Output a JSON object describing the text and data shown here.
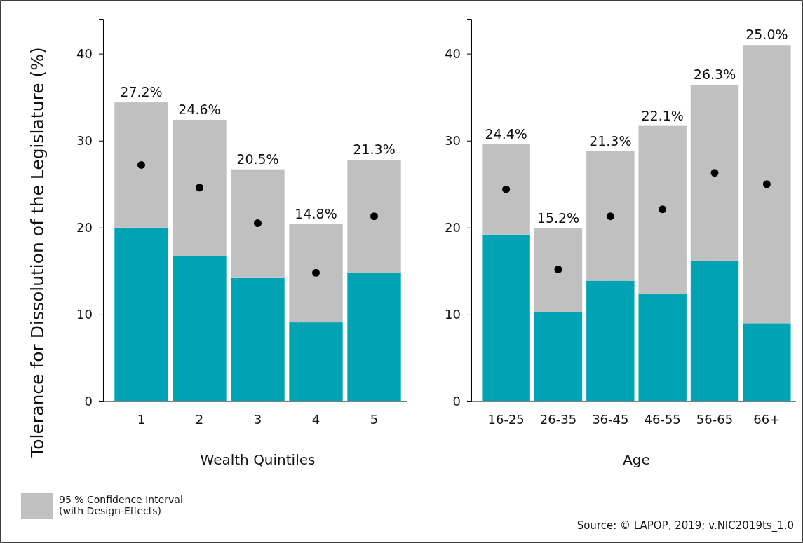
{
  "chart_data": [
    {
      "type": "bar",
      "stacked": true,
      "categories": [
        "1",
        "2",
        "3",
        "4",
        "5"
      ],
      "xlabel": "Wealth Quintiles",
      "ylabel": "Tolerance for Dissolution of the Legislature (%)",
      "ylim": [
        0,
        44
      ],
      "yticks": [
        0,
        10,
        20,
        30,
        40
      ],
      "legend": "bottom left",
      "annotations": [
        {
          "text": "27.2%",
          "x": "1",
          "y": 34.4
        },
        {
          "text": "24.6%",
          "x": "2",
          "y": 32.4
        },
        {
          "text": "20.5%",
          "x": "3",
          "y": 26.7
        },
        {
          "text": "14.8%",
          "x": "4",
          "y": 20.4
        },
        {
          "text": "21.3%",
          "x": "5",
          "y": 27.8
        }
      ],
      "series": [
        {
          "type": "bar",
          "color": "#00a3b4",
          "values": [
            20.0,
            16.7,
            14.2,
            9.1,
            14.8
          ]
        },
        {
          "type": "bar",
          "name": "95 % Confidence Interval (with Design-Effects)",
          "color": "#c0c0c0",
          "values": [
            14.4,
            15.7,
            12.5,
            11.3,
            13.0
          ]
        },
        {
          "type": "scatter",
          "color": "#000000",
          "values": [
            27.2,
            24.6,
            20.5,
            14.8,
            21.3
          ]
        }
      ]
    },
    {
      "type": "bar",
      "stacked": true,
      "categories": [
        "16-25",
        "26-35",
        "36-45",
        "46-55",
        "56-65",
        "66+"
      ],
      "xlabel": "Age",
      "ylim": [
        0,
        44
      ],
      "yticks": [
        0,
        10,
        20,
        30,
        40
      ],
      "annotations": [
        {
          "text": "24.4%",
          "x": "16-25",
          "y": 29.6
        },
        {
          "text": "15.2%",
          "x": "26-35",
          "y": 19.9
        },
        {
          "text": "21.3%",
          "x": "36-45",
          "y": 28.8
        },
        {
          "text": "22.1%",
          "x": "46-55",
          "y": 31.7
        },
        {
          "text": "26.3%",
          "x": "56-65",
          "y": 36.4
        },
        {
          "text": "25.0%",
          "x": "66+",
          "y": 41.0
        },
        "Source: © LAPOP, 2019; v.NIC2019ts_1.0"
      ],
      "series": [
        {
          "type": "bar",
          "color": "#00a3b4",
          "values": [
            19.2,
            10.3,
            13.9,
            12.4,
            16.2,
            9.0
          ]
        },
        {
          "type": "bar",
          "color": "#c0c0c0",
          "values": [
            10.4,
            9.6,
            14.9,
            19.3,
            20.2,
            32.0
          ]
        },
        {
          "type": "scatter",
          "color": "#000000",
          "values": [
            24.4,
            15.2,
            21.3,
            22.1,
            26.3,
            25.0
          ]
        }
      ]
    }
  ]
}
